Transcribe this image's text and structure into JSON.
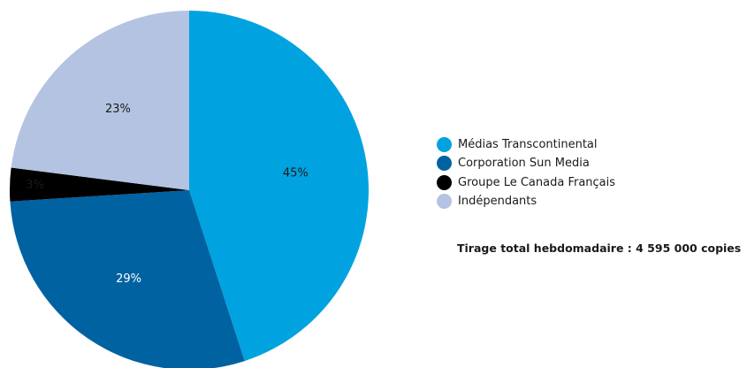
{
  "chart_data": {
    "type": "pie",
    "slices": [
      {
        "label": "Médias Transcontinental",
        "value": 45,
        "value_label": "45%",
        "color": "#00a3e0"
      },
      {
        "label": "Corporation Sun Media",
        "value": 29,
        "value_label": "29%",
        "color": "#0062a1"
      },
      {
        "label": "Groupe Le Canada Français",
        "value": 3,
        "value_label": "3%",
        "color": "#000000"
      },
      {
        "label": "Indépendants",
        "value": 23,
        "value_label": "23%",
        "color": "#b3c3e1"
      }
    ],
    "start_angle": "12 o'clock",
    "direction": "clockwise",
    "legend_position": "right",
    "title": ""
  },
  "note": "Tirage total hebdomadaire : 4 595 000 copies"
}
